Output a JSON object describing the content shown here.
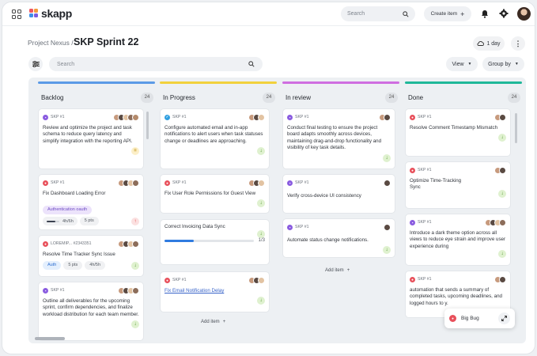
{
  "app": {
    "name": "skapp"
  },
  "topbar": {
    "search_placeholder": "Search",
    "create_label": "Create item",
    "plus": "+"
  },
  "header": {
    "breadcrumb": "Project Nexus /",
    "title": "SKP Sprint 22",
    "duration": "1 day",
    "more": "⋮"
  },
  "toolbar": {
    "search_placeholder": "Search",
    "view_label": "View",
    "group_label": "Group by"
  },
  "colors": {
    "low": "#3d8b1c",
    "medium": "#b98a05",
    "high": "#dd3333",
    "accent": "#2f7be0"
  },
  "columns": [
    {
      "title": "Backlog",
      "count": "24",
      "color": "#5b9ae6",
      "cards": [
        {
          "key": "SKP #1",
          "type": "story",
          "title": "Review and optimize the project and task schema to reduce query latency and simplify integration with the reporting API.",
          "priority": "medium"
        },
        {
          "key": "SKP #1",
          "type": "bug",
          "title": "Fix Dashboard Loading Error",
          "tag": "Authentication oauth",
          "progress": "4h/6h",
          "progress_value": 0.67,
          "points": "5 pts",
          "priority": "high"
        },
        {
          "key": "LOREMIP... #2343351",
          "type": "bug",
          "title": "Resolve Time Tracker Sync Issue",
          "chips": [
            "Auth",
            "5 pts",
            "4h/5h"
          ],
          "priority": "low"
        },
        {
          "key": "SKP #1",
          "type": "story",
          "title": "Outline all deliverables for the upcoming sprint, confirm dependencies, and finalize workload distribution for each team member.",
          "priority": "low"
        }
      ],
      "add_label": ""
    },
    {
      "title": "In Progress",
      "count": "24",
      "color": "#f2d13d",
      "cards": [
        {
          "key": "SKP #1",
          "type": "task",
          "title": "Configure automated email and in-app notifications to alert users when task statuses change or deadlines are approaching.",
          "priority": "low"
        },
        {
          "key": "SKP #1",
          "type": "bug",
          "title": "Fix User Role Permissions for Guest View",
          "priority": "low"
        },
        {
          "key": "",
          "type": "",
          "title": "Correct Invoicing Data Sync",
          "subtask_progress": "1/3",
          "subtask_value": 0.33,
          "priority": "low"
        },
        {
          "key": "SKP #1",
          "type": "bug",
          "title": "Fix Email Notification Delay",
          "link": true,
          "priority": "low"
        }
      ],
      "add_label": "Add item"
    },
    {
      "title": "In review",
      "count": "24",
      "color": "#cf6ee0",
      "cards": [
        {
          "key": "SKP #1",
          "type": "story",
          "title": "Conduct final testing to ensure the project board adapts smoothly across devices, maintaining drag-and-drop functionality and visibility of key task details.",
          "priority": "low"
        },
        {
          "key": "SKP #1",
          "type": "story",
          "title": "Verify cross-device UI consistency",
          "priority": ""
        },
        {
          "key": "SKP #1",
          "type": "story",
          "title": "Automate status change notifications.",
          "priority": "low"
        }
      ],
      "add_label": "Add item"
    },
    {
      "title": "Done",
      "count": "24",
      "color": "#1fb899",
      "cards": [
        {
          "key": "SKP #1",
          "type": "bug",
          "title": "Resolve Comment Timestamp Mismatch",
          "priority": "low"
        },
        {
          "key": "SKP #1",
          "type": "bug",
          "title": "Optimize Time-Tracking Sync",
          "priority": "low"
        },
        {
          "key": "SKP #1",
          "type": "story",
          "title": "Introduce a dark theme option across all views to reduce eye strain and improve user experience during",
          "priority": "low"
        },
        {
          "key": "SKP #1",
          "type": "bug",
          "title": "automation that sends a summary of completed tasks, upcoming deadlines, and logged hours to y.",
          "priority": ""
        }
      ],
      "add_label": ""
    }
  ],
  "toast": {
    "label": "Big Bug"
  }
}
